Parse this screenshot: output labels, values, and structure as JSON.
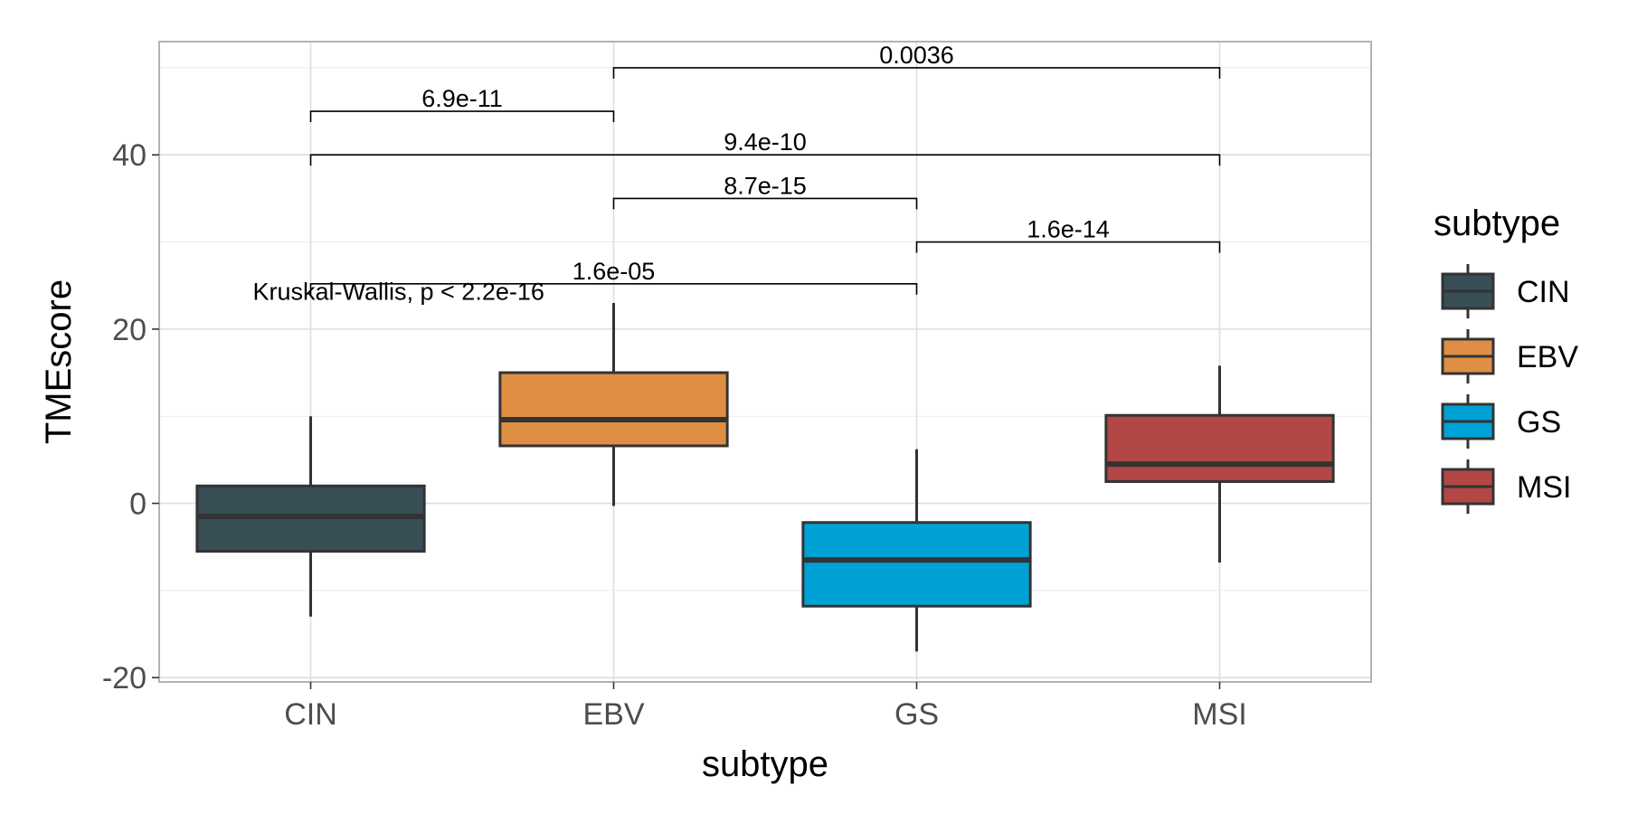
{
  "chart_data": {
    "type": "boxplot",
    "xlabel": "subtype",
    "ylabel": "TMEscore",
    "categories": [
      "CIN",
      "EBV",
      "GS",
      "MSI"
    ],
    "ylim": [
      -20.5,
      53
    ],
    "yticks": [
      -20,
      0,
      20,
      40
    ],
    "grid": true,
    "legend": {
      "title": "subtype",
      "position": "right",
      "entries": [
        "CIN",
        "EBV",
        "GS",
        "MSI"
      ]
    },
    "colors": {
      "CIN": "#374E55",
      "EBV": "#DF8F44",
      "GS": "#00A1D5",
      "MSI": "#B24745"
    },
    "boxes": [
      {
        "category": "CIN",
        "whisker_low": -13,
        "q1": -5.5,
        "median": -1.5,
        "q3": 2,
        "whisker_high": 10
      },
      {
        "category": "EBV",
        "whisker_low": -0.3,
        "q1": 6.6,
        "median": 9.6,
        "q3": 15,
        "whisker_high": 23
      },
      {
        "category": "GS",
        "whisker_low": -17,
        "q1": -11.8,
        "median": -6.5,
        "q3": -2.2,
        "whisker_high": 6.2
      },
      {
        "category": "MSI",
        "whisker_low": -6.8,
        "q1": 2.5,
        "median": 4.5,
        "q3": 10.1,
        "whisker_high": 15.8
      }
    ],
    "comparisons": [
      {
        "from": "CIN",
        "to": "EBV",
        "label": "6.9e-11",
        "y": 45
      },
      {
        "from": "CIN",
        "to": "MSI",
        "label": "9.4e-10",
        "y": 40
      },
      {
        "from": "EBV",
        "to": "GS",
        "label": "8.7e-15",
        "y": 35
      },
      {
        "from": "GS",
        "to": "MSI",
        "label": "1.6e-14",
        "y": 30
      },
      {
        "from": "CIN",
        "to": "GS",
        "label": "1.6e-05",
        "y": 25.2
      },
      {
        "from": "EBV",
        "to": "MSI",
        "label": "0.0036",
        "y": 50
      }
    ],
    "annotation": {
      "text": "Kruskal-Wallis, p < 2.2e-16",
      "x_category": "CIN",
      "y": 24.3
    }
  }
}
